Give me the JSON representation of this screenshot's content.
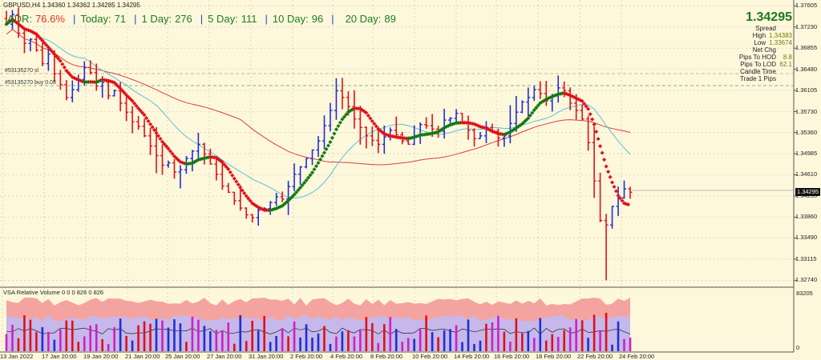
{
  "window": {
    "title": "GBPUSD,H4  1.34360 1.34362 1.34285 1.34295"
  },
  "adr_bar": {
    "adr_label": "ADR:",
    "adr_value": "76.6%",
    "today_label": "Today:",
    "today_value": "71",
    "day1_label": "1 Day:",
    "day1_value": "276",
    "day5_label": "5 Day:",
    "day5_value": "111",
    "day10_label": "10 Day:",
    "day10_value": "96",
    "day20_label": "20 Day:",
    "day20_value": "89"
  },
  "info_panel": {
    "price": "1.34295",
    "spread_label": "Spread",
    "spread_value": "",
    "high_label": "High",
    "high_value": "1.34383",
    "low_label": "Low",
    "low_value": "1.33674",
    "netchg_label": "Net Chg",
    "netchg_value": "",
    "pips_hod_label": "Pips To HOD",
    "pips_hod_value": "8.8",
    "pips_lod_label": "Pips To LOD",
    "pips_lod_value": "62.1",
    "candle_time_label": "Candle Time",
    "candle_time_value": "",
    "trade1_label": "Trade 1 Pips",
    "trade1_value": ""
  },
  "orders": [
    {
      "label": "#53135270 sl"
    },
    {
      "label": "#53135270 buy 0.08"
    }
  ],
  "vsa_label": "VSA Relative Volume 0 0 0 826 0 826",
  "vol_axis": {
    "max": "83205",
    "zero": "0"
  },
  "y_axis": [
    "1.37605",
    "1.37230",
    "1.36855",
    "1.36480",
    "1.36105",
    "1.35730",
    "1.35360",
    "1.34985",
    "1.34610",
    "1.34235",
    "1.33860",
    "1.33490",
    "1.33115",
    "1.32740"
  ],
  "current_price_tag": "1.34295",
  "x_axis": [
    "13 Jan 2022",
    "17 Jan 20:00",
    "19 Jan 20:00",
    "21 Jan 20:00",
    "25 Jan 20:00",
    "27 Jan 20:00",
    "31 Jan 20:00",
    "2 Feb 20:00",
    "4 Feb 20:00",
    "8 Feb 20:00",
    "10 Feb 20:00",
    "14 Feb 20:00",
    "16 Feb 20:00",
    "18 Feb 20:00",
    "22 Feb 20:00",
    "24 Feb 20:00"
  ],
  "colors": {
    "background": "#fdf7dc",
    "bull": "#1e2fd4",
    "bear": "#e0101a",
    "ma_up": "#0f7a0f",
    "ma_down": "#e0101a",
    "ma_slow": "#d94040",
    "ma_fast": "#5bc0d8"
  },
  "chart_data": {
    "type": "line",
    "title": "GBPUSD,H4",
    "price_range": [
      1.3266,
      1.3768
    ],
    "series": [
      {
        "name": "close",
        "values": [
          1.3728,
          1.3745,
          1.3712,
          1.3694,
          1.3701,
          1.3682,
          1.3658,
          1.3675,
          1.364,
          1.3621,
          1.3598,
          1.3612,
          1.363,
          1.3651,
          1.3642,
          1.3618,
          1.3625,
          1.3601,
          1.361,
          1.3588,
          1.3572,
          1.3555,
          1.3547,
          1.353,
          1.3512,
          1.3495,
          1.3478,
          1.3482,
          1.3466,
          1.347,
          1.349,
          1.3503,
          1.3515,
          1.3498,
          1.348,
          1.3462,
          1.3441,
          1.343,
          1.3415,
          1.3402,
          1.339,
          1.3385,
          1.3398,
          1.3401,
          1.3412,
          1.3422,
          1.3418,
          1.344,
          1.3462,
          1.3475,
          1.349,
          1.3505,
          1.3521,
          1.3548,
          1.3575,
          1.361,
          1.3598,
          1.3582,
          1.356,
          1.3545,
          1.353,
          1.3522,
          1.3515,
          1.3528,
          1.354,
          1.3532,
          1.3521,
          1.3515,
          1.353,
          1.355,
          1.3548,
          1.3542,
          1.3538,
          1.3558,
          1.3561,
          1.357,
          1.3552,
          1.354,
          1.3525,
          1.353,
          1.3545,
          1.3538,
          1.3526,
          1.353,
          1.3552,
          1.3572,
          1.359,
          1.3598,
          1.3612,
          1.3605,
          1.3592,
          1.3601,
          1.3615,
          1.361,
          1.3588,
          1.3575,
          1.356,
          1.3518,
          1.345,
          1.338,
          1.3372,
          1.3405,
          1.342,
          1.3436,
          1.343
        ]
      }
    ],
    "y_ticks": [
      "1.37605",
      "1.37230",
      "1.36855",
      "1.36480",
      "1.36105",
      "1.35730",
      "1.35360",
      "1.34985",
      "1.34610",
      "1.34235",
      "1.33860",
      "1.33490",
      "1.33115",
      "1.32740"
    ],
    "x_ticks": [
      "13 Jan 2022",
      "17 Jan 20:00",
      "19 Jan 20:00",
      "21 Jan 20:00",
      "25 Jan 20:00",
      "27 Jan 20:00",
      "31 Jan 20:00",
      "2 Feb 20:00",
      "4 Feb 20:00",
      "8 Feb 20:00",
      "10 Feb 20:00",
      "14 Feb 20:00",
      "16 Feb 20:00",
      "18 Feb 20:00",
      "22 Feb 20:00",
      "24 Feb 20:00"
    ],
    "grid": true
  }
}
